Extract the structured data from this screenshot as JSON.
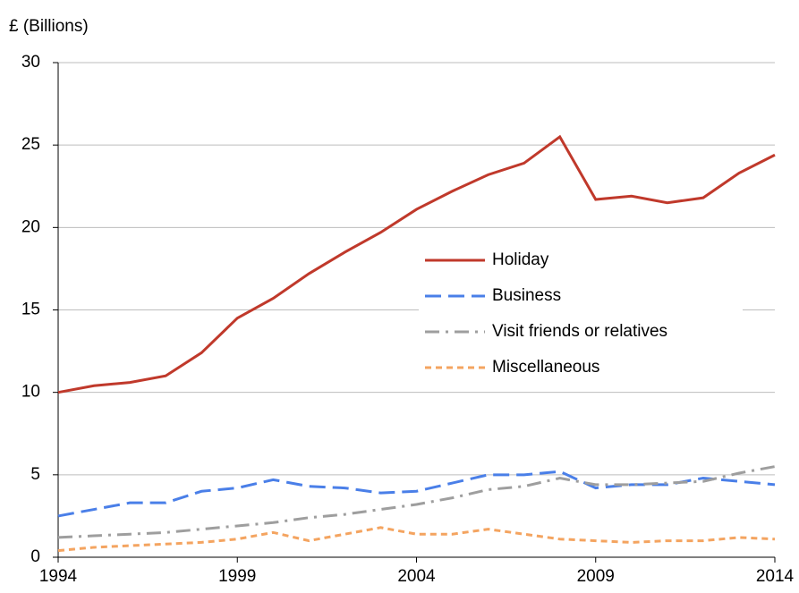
{
  "chart_data": {
    "type": "line",
    "y_label": "£ (Billions)",
    "x": [
      1994,
      1995,
      1996,
      1997,
      1998,
      1999,
      2000,
      2001,
      2002,
      2003,
      2004,
      2005,
      2006,
      2007,
      2008,
      2009,
      2010,
      2011,
      2012,
      2013,
      2014
    ],
    "series": [
      {
        "name": "Holiday",
        "color": "#c0392b",
        "style": "solid",
        "values": [
          10,
          10.4,
          10.6,
          11.0,
          12.4,
          14.5,
          15.7,
          17.2,
          18.5,
          19.7,
          21.1,
          22.2,
          23.2,
          23.9,
          25.5,
          21.7,
          21.9,
          21.5,
          21.8,
          23.3,
          24.4
        ]
      },
      {
        "name": "Business",
        "color": "#4a7fe8",
        "style": "dashed",
        "values": [
          2.5,
          2.9,
          3.3,
          3.3,
          4.0,
          4.2,
          4.7,
          4.3,
          4.2,
          3.9,
          4.0,
          4.5,
          5.0,
          5.0,
          5.2,
          4.2,
          4.4,
          4.4,
          4.8,
          4.6,
          4.4
        ]
      },
      {
        "name": "Visit friends or relatives",
        "color": "#9e9e9e",
        "style": "dashdot",
        "values": [
          1.2,
          1.3,
          1.4,
          1.5,
          1.7,
          1.9,
          2.1,
          2.4,
          2.6,
          2.9,
          3.2,
          3.6,
          4.1,
          4.3,
          4.8,
          4.4,
          4.4,
          4.5,
          4.6,
          5.1,
          5.5
        ]
      },
      {
        "name": "Miscellaneous",
        "color": "#f4a460",
        "style": "dotted",
        "values": [
          0.4,
          0.6,
          0.7,
          0.8,
          0.9,
          1.1,
          1.5,
          1.0,
          1.4,
          1.8,
          1.4,
          1.4,
          1.7,
          1.4,
          1.1,
          1.0,
          0.9,
          1.0,
          1.0,
          1.2,
          1.1
        ]
      }
    ],
    "xlim": [
      1994,
      2014
    ],
    "xticks": [
      1994,
      1999,
      2004,
      2009,
      2014
    ],
    "ylim": [
      0,
      30
    ],
    "yticks": [
      0,
      5,
      10,
      15,
      20,
      25,
      30
    ],
    "grid": true
  }
}
